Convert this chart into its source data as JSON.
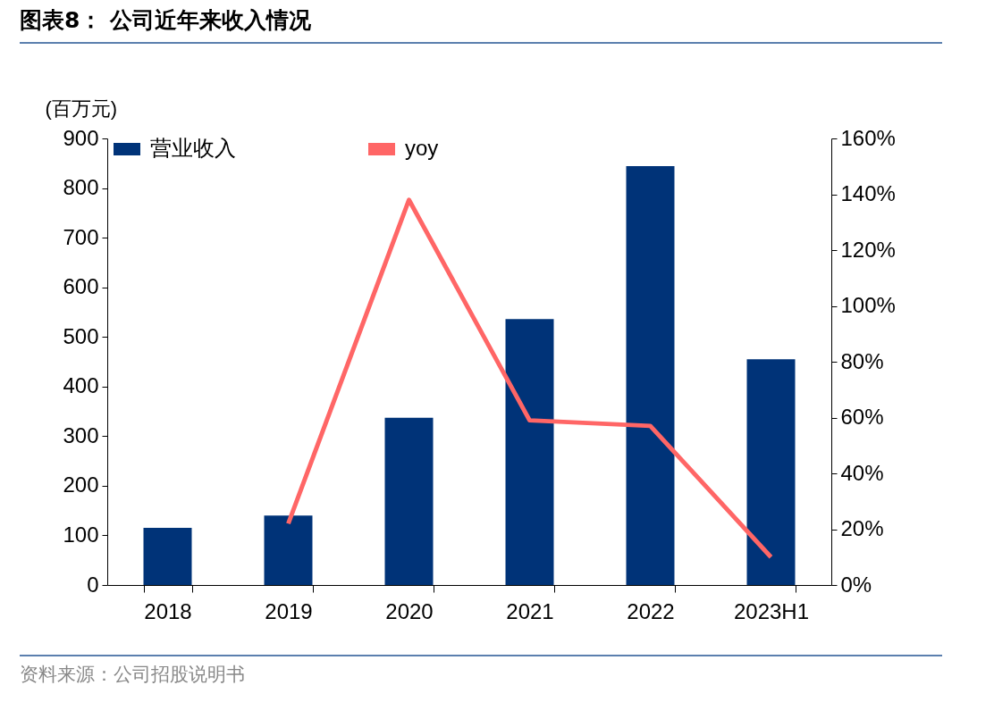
{
  "chart_data": {
    "type": "bar",
    "title": "图表8：  公司近年来收入情况",
    "ylabel": "(百万元)",
    "categories": [
      "2018",
      "2019",
      "2020",
      "2021",
      "2022",
      "2023H1"
    ],
    "series": [
      {
        "name": "营业收入",
        "color": "#003378",
        "values": [
          115,
          140,
          337,
          536,
          844,
          455
        ]
      },
      {
        "name": "yoy",
        "type": "line",
        "axis": "y2",
        "color": "#ff6666",
        "values": [
          null,
          22,
          138,
          59,
          57,
          10
        ]
      }
    ],
    "ylim": [
      0,
      900
    ],
    "yticks": [
      0,
      100,
      200,
      300,
      400,
      500,
      600,
      700,
      800,
      900
    ],
    "y2lim": [
      0,
      160
    ],
    "y2ticks": [
      {
        "value": 0,
        "label": "0%"
      },
      {
        "value": 20,
        "label": "20%"
      },
      {
        "value": 40,
        "label": "40%"
      },
      {
        "value": 60,
        "label": "60%"
      },
      {
        "value": 80,
        "label": "80%"
      },
      {
        "value": 100,
        "label": "100%"
      },
      {
        "value": 120,
        "label": "120%"
      },
      {
        "value": 140,
        "label": "140%"
      },
      {
        "value": 160,
        "label": "160%"
      }
    ],
    "legend": "top",
    "grid": false,
    "marker": "none",
    "line_style": "solid",
    "annotations": [
      "资料来源：公司招股说明书"
    ]
  }
}
